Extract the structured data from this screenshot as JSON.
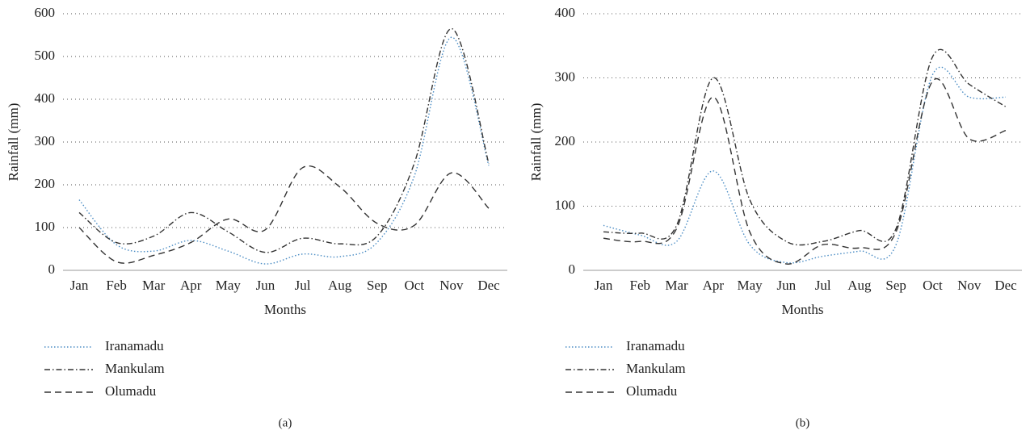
{
  "chart_data": [
    {
      "type": "line",
      "label": "(a)",
      "x_label": "Months",
      "y_label": "Rainfall (mm)",
      "categories": [
        "Jan",
        "Feb",
        "Mar",
        "Apr",
        "May",
        "Jun",
        "Jul",
        "Aug",
        "Sep",
        "Oct",
        "Nov",
        "Dec"
      ],
      "ylim": [
        0,
        600
      ],
      "yticks": [
        0,
        100,
        200,
        300,
        400,
        500,
        600
      ],
      "grid": true,
      "series": [
        {
          "name": "Iranamadu",
          "color": "#4a8cc4",
          "dash": "dotted",
          "values": [
            165,
            60,
            45,
            70,
            45,
            15,
            38,
            32,
            65,
            220,
            545,
            245
          ]
        },
        {
          "name": "Mankulam",
          "color": "#333333",
          "dash": "dashdot",
          "values": [
            135,
            65,
            80,
            135,
            90,
            42,
            75,
            62,
            80,
            250,
            565,
            250
          ]
        },
        {
          "name": "Olumadu",
          "color": "#333333",
          "dash": "dashed",
          "values": [
            100,
            20,
            35,
            65,
            120,
            95,
            240,
            195,
            110,
            105,
            228,
            145
          ]
        }
      ]
    },
    {
      "type": "line",
      "label": "(b)",
      "x_label": "Months",
      "y_label": "Rainfall (mm)",
      "categories": [
        "Jan",
        "Feb",
        "Mar",
        "Apr",
        "May",
        "Jun",
        "Jul",
        "Aug",
        "Sep",
        "Oct",
        "Nov",
        "Dec"
      ],
      "ylim": [
        0,
        400
      ],
      "yticks": [
        0,
        100,
        200,
        300,
        400
      ],
      "grid": true,
      "series": [
        {
          "name": "Iranamadu",
          "color": "#4a8cc4",
          "dash": "dotted",
          "values": [
            70,
            55,
            45,
            155,
            40,
            12,
            22,
            30,
            40,
            305,
            270,
            270
          ]
        },
        {
          "name": "Mankulam",
          "color": "#333333",
          "dash": "dashdot",
          "values": [
            60,
            58,
            70,
            300,
            110,
            45,
            45,
            62,
            65,
            333,
            290,
            255
          ]
        },
        {
          "name": "Olumadu",
          "color": "#333333",
          "dash": "dashed",
          "values": [
            50,
            45,
            65,
            270,
            60,
            10,
            40,
            35,
            60,
            295,
            205,
            218
          ]
        }
      ]
    }
  ]
}
